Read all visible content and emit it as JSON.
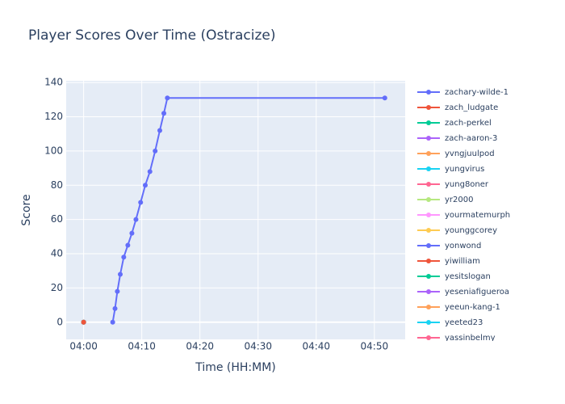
{
  "chart_data": {
    "type": "line",
    "title": "Player Scores Over Time (Ostracize)",
    "x_label": "Time (HH:MM)",
    "y_label": "Score",
    "xlim": [
      237,
      295.3
    ],
    "ylim": [
      -10,
      141
    ],
    "xticks": [
      {
        "value": 240,
        "label": "04:00"
      },
      {
        "value": 250,
        "label": "04:10"
      },
      {
        "value": 260,
        "label": "04:20"
      },
      {
        "value": 270,
        "label": "04:30"
      },
      {
        "value": 280,
        "label": "04:40"
      },
      {
        "value": 290,
        "label": "04:50"
      }
    ],
    "yticks": [
      0,
      20,
      40,
      60,
      80,
      100,
      120,
      140
    ],
    "grid": true,
    "series": [
      {
        "name": "zachary-wilde-1",
        "color": "#636efa",
        "x": [
          245,
          245.4,
          245.8,
          246.3,
          246.9,
          247.6,
          248.3,
          249,
          249.8,
          250.6,
          251.4,
          252.3,
          253.1,
          253.8,
          254.4,
          291.8
        ],
        "values": [
          0,
          8,
          18,
          28,
          38,
          45,
          52,
          60,
          70,
          80,
          88,
          100,
          112,
          122,
          131,
          131
        ]
      },
      {
        "name": "zach_ludgate",
        "color": "#EF553B",
        "x": [
          240
        ],
        "values": [
          0
        ]
      },
      {
        "name": "zach-perkel",
        "color": "#00cc96",
        "x": [
          240
        ],
        "values": [
          0
        ]
      },
      {
        "name": "zach-aaron-3",
        "color": "#ab63fa",
        "x": [
          240
        ],
        "values": [
          0
        ]
      },
      {
        "name": "yvngjuulpod",
        "color": "#FFA15A",
        "x": [
          240
        ],
        "values": [
          0
        ]
      },
      {
        "name": "yungvirus",
        "color": "#19d3f3",
        "x": [
          240
        ],
        "values": [
          0
        ]
      },
      {
        "name": "yung8oner",
        "color": "#FF6692",
        "x": [
          240
        ],
        "values": [
          0
        ]
      },
      {
        "name": "yr2000",
        "color": "#B6E880",
        "x": [
          240
        ],
        "values": [
          0
        ]
      },
      {
        "name": "yourmatemurph",
        "color": "#FF97FF",
        "x": [
          240
        ],
        "values": [
          0
        ]
      },
      {
        "name": "younggcorey",
        "color": "#FECB52",
        "x": [
          240
        ],
        "values": [
          0
        ]
      },
      {
        "name": "yonwond",
        "color": "#636efa",
        "x": [
          240
        ],
        "values": [
          0
        ]
      },
      {
        "name": "yiwilliam",
        "color": "#EF553B",
        "x": [
          240
        ],
        "values": [
          0
        ]
      },
      {
        "name": "yesitslogan",
        "color": "#00cc96",
        "x": [
          240
        ],
        "values": [
          0
        ]
      },
      {
        "name": "yeseniafigueroa",
        "color": "#ab63fa",
        "x": [
          240
        ],
        "values": [
          0
        ]
      },
      {
        "name": "yeeun-kang-1",
        "color": "#FFA15A",
        "x": [
          240
        ],
        "values": [
          0
        ]
      },
      {
        "name": "yeeted23",
        "color": "#19d3f3",
        "x": [
          240
        ],
        "values": [
          0
        ]
      },
      {
        "name": "yassinbelmy",
        "color": "#FF6692",
        "x": [
          240
        ],
        "values": [
          0
        ]
      }
    ]
  }
}
